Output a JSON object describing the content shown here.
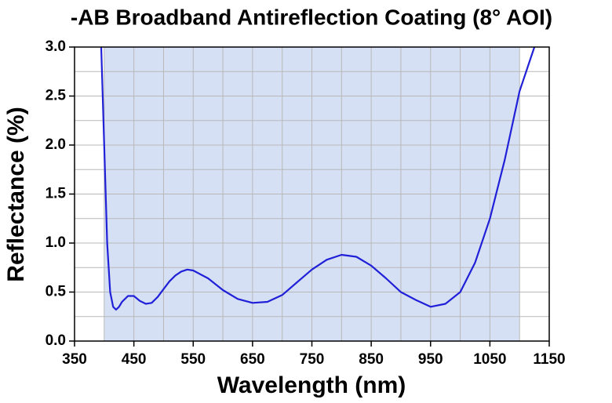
{
  "chart_data": {
    "type": "line",
    "title": "-AB Broadband Antireflection Coating (8° AOI)",
    "x_label": "Wavelength (nm)",
    "y_label": "Reflectance (%)",
    "x": [
      395,
      400,
      405,
      410,
      415,
      420,
      425,
      430,
      440,
      450,
      460,
      470,
      480,
      490,
      500,
      510,
      520,
      530,
      540,
      550,
      575,
      600,
      625,
      650,
      675,
      700,
      725,
      750,
      775,
      800,
      825,
      850,
      875,
      900,
      925,
      950,
      975,
      1000,
      1025,
      1050,
      1075,
      1100,
      1125
    ],
    "values": [
      3.0,
      2.0,
      1.0,
      0.5,
      0.35,
      0.32,
      0.35,
      0.4,
      0.46,
      0.46,
      0.41,
      0.38,
      0.39,
      0.45,
      0.53,
      0.61,
      0.67,
      0.71,
      0.73,
      0.72,
      0.64,
      0.52,
      0.43,
      0.39,
      0.4,
      0.47,
      0.6,
      0.73,
      0.83,
      0.88,
      0.86,
      0.77,
      0.64,
      0.5,
      0.42,
      0.35,
      0.38,
      0.5,
      0.8,
      1.25,
      1.85,
      2.55,
      3.0
    ],
    "color": "#2020d8",
    "shaded_range": [
      400,
      1100
    ],
    "shade_color": "#d6e0f4",
    "xlim": [
      350,
      1150
    ],
    "xticks": [
      350,
      450,
      550,
      650,
      750,
      850,
      950,
      1050,
      1150
    ],
    "xgrid": [
      400,
      450,
      500,
      550,
      600,
      650,
      700,
      750,
      800,
      850,
      900,
      950,
      1000,
      1050,
      1100
    ],
    "ylim": [
      0,
      3
    ],
    "yticks": [
      {
        "value": 0,
        "label": "0.0"
      },
      {
        "value": 0.5,
        "label": "0.5"
      },
      {
        "value": 1,
        "label": "1.0"
      },
      {
        "value": 1.5,
        "label": "1.5"
      },
      {
        "value": 2,
        "label": "2.0"
      },
      {
        "value": 2.5,
        "label": "2.5"
      },
      {
        "value": 3,
        "label": "3.0"
      }
    ],
    "ygrid": [
      0.25,
      0.5,
      0.75,
      1,
      1.25,
      1.5,
      1.75,
      2,
      2.25,
      2.5,
      2.75
    ],
    "grid": true
  }
}
